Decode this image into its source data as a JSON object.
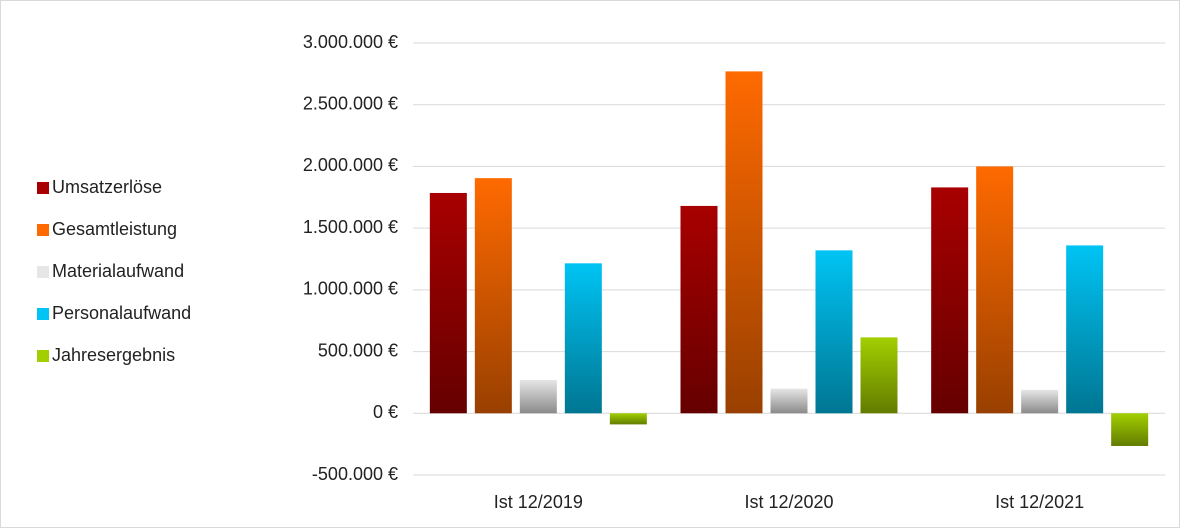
{
  "chart_data": {
    "type": "bar",
    "categories": [
      "Ist 12/2019",
      "Ist 12/2020",
      "Ist 12/2021"
    ],
    "series": [
      {
        "name": "Umsatzerlöse",
        "color": "#a80000",
        "values": [
          1785000,
          1680000,
          1830000
        ]
      },
      {
        "name": "Gesamtleistung",
        "color": "#ff6a00",
        "values": [
          1905000,
          2770000,
          2000000
        ]
      },
      {
        "name": "Materialaufwand",
        "color": "#e6e6e6",
        "values": [
          270000,
          200000,
          190000
        ]
      },
      {
        "name": "Personalaufwand",
        "color": "#00c4f4",
        "values": [
          1215000,
          1320000,
          1360000
        ]
      },
      {
        "name": "Jahresergebnis",
        "color": "#a3cf00",
        "values": [
          -90000,
          615000,
          -265000
        ]
      }
    ],
    "ylim": [
      -500000,
      3000000
    ],
    "yticks": [
      {
        "value": -500000,
        "label": "-500.000 €"
      },
      {
        "value": 0,
        "label": "0 €"
      },
      {
        "value": 500000,
        "label": "500.000 €"
      },
      {
        "value": 1000000,
        "label": "1.000.000 €"
      },
      {
        "value": 1500000,
        "label": "1.500.000 €"
      },
      {
        "value": 2000000,
        "label": "2.000.000 €"
      },
      {
        "value": 2500000,
        "label": "2.500.000 €"
      },
      {
        "value": 3000000,
        "label": "3.000.000 €"
      }
    ],
    "grid": true,
    "legend": "left"
  }
}
